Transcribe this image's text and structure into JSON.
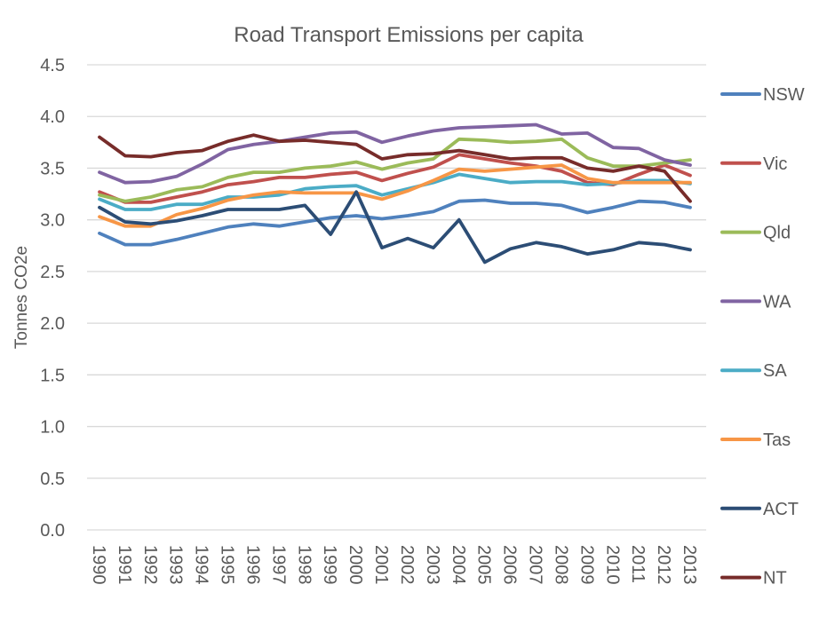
{
  "chart_data": {
    "type": "line",
    "title": "Road Transport Emissions per capita",
    "xlabel": "",
    "ylabel": "Tonnes CO2e",
    "ylim": [
      0,
      4.5
    ],
    "yticks": [
      "0.0",
      "0.5",
      "1.0",
      "1.5",
      "2.0",
      "2.5",
      "3.0",
      "3.5",
      "4.0",
      "4.5"
    ],
    "ytick_values": [
      0,
      0.5,
      1.0,
      1.5,
      2.0,
      2.5,
      3.0,
      3.5,
      4.0,
      4.5
    ],
    "grid": true,
    "legend_position": "right",
    "categories": [
      "1990",
      "1991",
      "1992",
      "1993",
      "1994",
      "1995",
      "1996",
      "1997",
      "1998",
      "1999",
      "2000",
      "2001",
      "2002",
      "2003",
      "2004",
      "2005",
      "2006",
      "2007",
      "2008",
      "2009",
      "2010",
      "2011",
      "2012",
      "2013"
    ],
    "series": [
      {
        "name": "NSW",
        "color": "#4F81BD",
        "values": [
          2.87,
          2.76,
          2.76,
          2.81,
          2.87,
          2.93,
          2.96,
          2.94,
          2.98,
          3.02,
          3.04,
          3.01,
          3.04,
          3.08,
          3.18,
          3.19,
          3.16,
          3.16,
          3.14,
          3.07,
          3.12,
          3.18,
          3.17,
          3.12
        ]
      },
      {
        "name": "Vic",
        "color": "#C0504D",
        "values": [
          3.27,
          3.17,
          3.17,
          3.22,
          3.27,
          3.34,
          3.37,
          3.41,
          3.41,
          3.44,
          3.46,
          3.38,
          3.45,
          3.51,
          3.63,
          3.59,
          3.55,
          3.52,
          3.47,
          3.36,
          3.34,
          3.44,
          3.53,
          3.43
        ]
      },
      {
        "name": "Qld",
        "color": "#9BBB59",
        "values": [
          3.24,
          3.18,
          3.22,
          3.29,
          3.32,
          3.41,
          3.46,
          3.46,
          3.5,
          3.52,
          3.56,
          3.49,
          3.55,
          3.59,
          3.78,
          3.77,
          3.75,
          3.76,
          3.78,
          3.6,
          3.52,
          3.52,
          3.55,
          3.58
        ]
      },
      {
        "name": "WA",
        "color": "#8064A2",
        "values": [
          3.46,
          3.36,
          3.37,
          3.42,
          3.54,
          3.68,
          3.73,
          3.76,
          3.8,
          3.84,
          3.85,
          3.75,
          3.81,
          3.86,
          3.89,
          3.9,
          3.91,
          3.92,
          3.83,
          3.84,
          3.7,
          3.69,
          3.58,
          3.53
        ]
      },
      {
        "name": "SA",
        "color": "#4BACC6",
        "values": [
          3.2,
          3.1,
          3.1,
          3.15,
          3.15,
          3.22,
          3.22,
          3.24,
          3.3,
          3.32,
          3.33,
          3.24,
          3.3,
          3.36,
          3.44,
          3.4,
          3.36,
          3.37,
          3.37,
          3.34,
          3.35,
          3.38,
          3.38,
          3.35
        ]
      },
      {
        "name": "Tas",
        "color": "#F79646",
        "values": [
          3.03,
          2.94,
          2.94,
          3.05,
          3.11,
          3.19,
          3.24,
          3.27,
          3.26,
          3.26,
          3.26,
          3.2,
          3.28,
          3.38,
          3.49,
          3.47,
          3.49,
          3.51,
          3.53,
          3.4,
          3.36,
          3.36,
          3.36,
          3.36
        ]
      },
      {
        "name": "ACT",
        "color": "#2C4D75",
        "values": [
          3.12,
          2.98,
          2.96,
          2.99,
          3.04,
          3.1,
          3.1,
          3.1,
          3.14,
          2.86,
          3.27,
          2.73,
          2.82,
          2.73,
          3.0,
          2.59,
          2.72,
          2.78,
          2.74,
          2.67,
          2.71,
          2.78,
          2.76,
          2.71
        ]
      },
      {
        "name": "NT",
        "color": "#772C2A",
        "values": [
          3.8,
          3.62,
          3.61,
          3.65,
          3.67,
          3.76,
          3.82,
          3.76,
          3.77,
          3.75,
          3.73,
          3.59,
          3.63,
          3.64,
          3.67,
          3.63,
          3.59,
          3.6,
          3.6,
          3.5,
          3.47,
          3.52,
          3.47,
          3.18
        ]
      }
    ]
  }
}
